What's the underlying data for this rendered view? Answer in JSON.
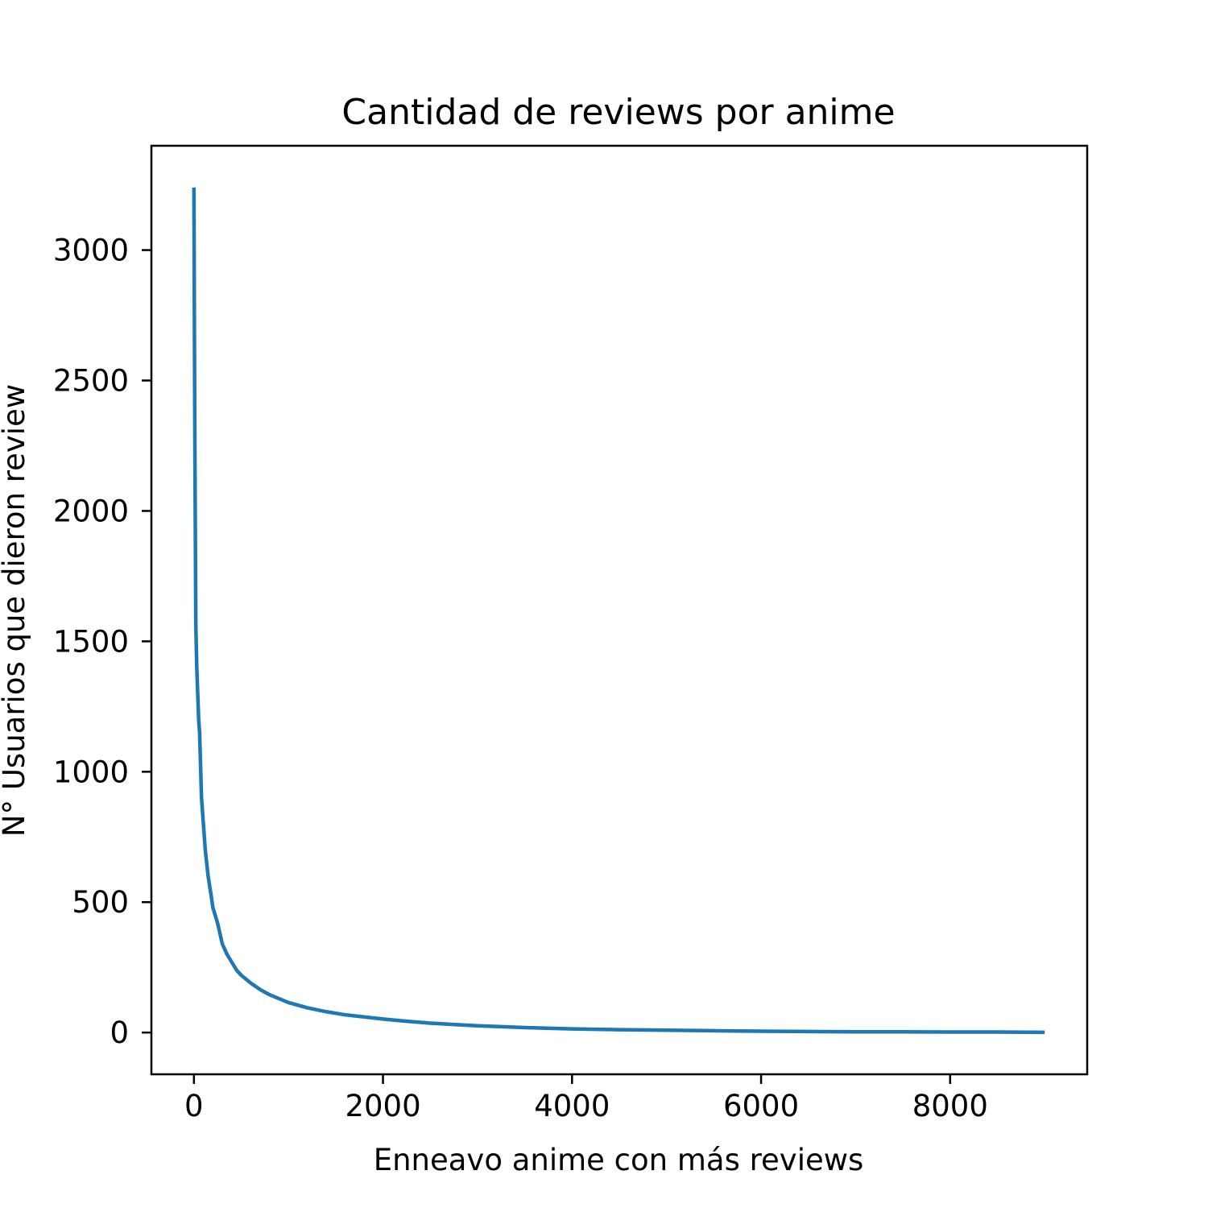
{
  "chart_data": {
    "type": "line",
    "title": "Cantidad de reviews por anime",
    "xlabel": "Enneavo anime con más reviews",
    "ylabel": "N° Usuarios que dieron review",
    "xlim": [
      -450,
      9450
    ],
    "ylim": [
      -160,
      3400
    ],
    "xticks": [
      0,
      2000,
      4000,
      6000,
      8000
    ],
    "yticks": [
      0,
      500,
      1000,
      1500,
      2000,
      2500,
      3000
    ],
    "grid": false,
    "color": "#1f77b4",
    "series": [
      {
        "x": [
          0,
          5,
          10,
          20,
          30,
          40,
          50,
          60,
          80,
          100,
          120,
          150,
          180,
          200,
          250,
          300,
          350,
          400,
          450,
          500,
          600,
          700,
          800,
          900,
          1000,
          1200,
          1400,
          1600,
          1800,
          2000,
          2200,
          2500,
          2800,
          3000,
          3500,
          4000,
          4500,
          5000,
          5500,
          6000,
          6500,
          7000,
          7500,
          8000,
          8500,
          9000
        ],
        "y": [
          3240,
          2700,
          2250,
          1560,
          1400,
          1300,
          1200,
          1150,
          900,
          800,
          700,
          600,
          530,
          480,
          420,
          340,
          300,
          270,
          240,
          220,
          190,
          165,
          145,
          130,
          115,
          95,
          80,
          68,
          60,
          52,
          45,
          36,
          30,
          26,
          19,
          14,
          11,
          9,
          7,
          5,
          4,
          3,
          3,
          2,
          2,
          1
        ]
      }
    ]
  }
}
